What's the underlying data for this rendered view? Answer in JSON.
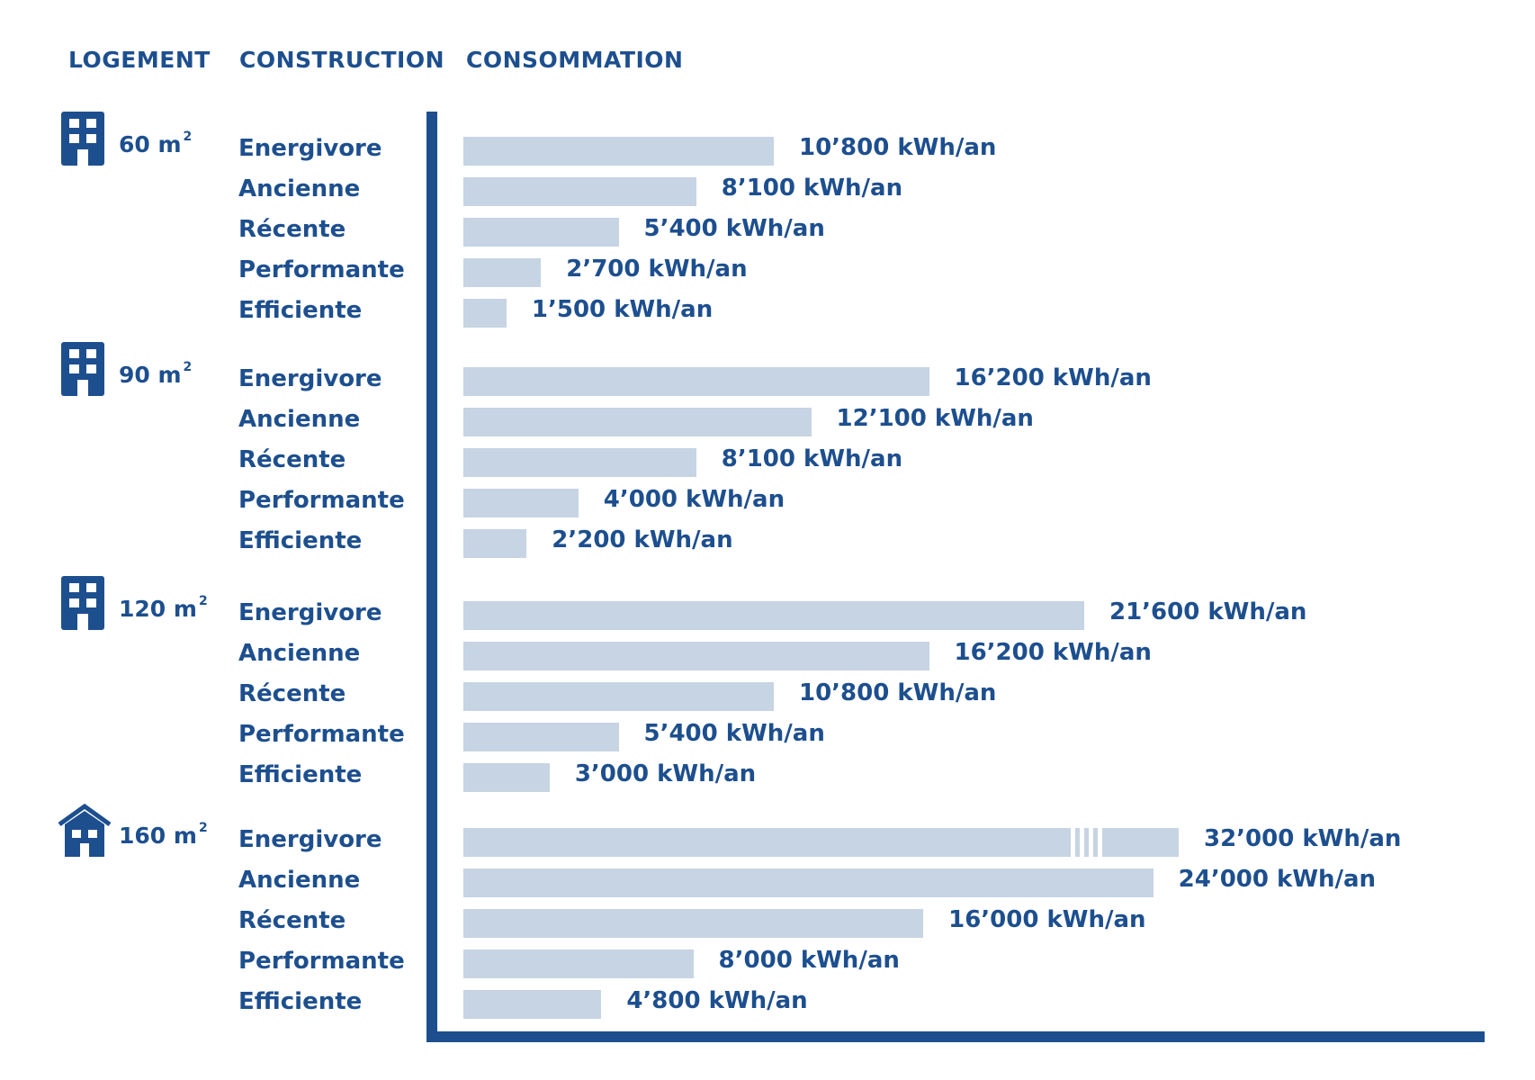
{
  "headers": {
    "logement": "LOGEMENT",
    "construction": "CONSTRUCTION",
    "consommation": "CONSOMMATION"
  },
  "colors": {
    "accent": "#1d4f8f",
    "bar": "#c6d4e3",
    "background": "#ffffff"
  },
  "chart_data": {
    "type": "bar",
    "orientation": "horizontal",
    "unit": "kWh/an",
    "axis_break": {
      "category_group": "160 m2",
      "category": "Energivore"
    },
    "groups": [
      {
        "size": "60 m",
        "exponent": "2",
        "icon": "apartment-building-icon",
        "rows": [
          {
            "label": "Energivore",
            "value": 10800,
            "text": "10’800 kWh/an"
          },
          {
            "label": "Ancienne",
            "value": 8100,
            "text": "8’100 kWh/an"
          },
          {
            "label": "Récente",
            "value": 5400,
            "text": "5’400 kWh/an"
          },
          {
            "label": "Performante",
            "value": 2700,
            "text": "2’700 kWh/an"
          },
          {
            "label": "Efficiente",
            "value": 1500,
            "text": "1’500 kWh/an"
          }
        ]
      },
      {
        "size": "90 m",
        "exponent": "2",
        "icon": "apartment-building-icon",
        "rows": [
          {
            "label": "Energivore",
            "value": 16200,
            "text": "16’200 kWh/an"
          },
          {
            "label": "Ancienne",
            "value": 12100,
            "text": "12’100 kWh/an"
          },
          {
            "label": "Récente",
            "value": 8100,
            "text": "8’100 kWh/an"
          },
          {
            "label": "Performante",
            "value": 4000,
            "text": "4’000 kWh/an"
          },
          {
            "label": "Efficiente",
            "value": 2200,
            "text": "2’200 kWh/an"
          }
        ]
      },
      {
        "size": "120 m",
        "exponent": "2",
        "icon": "apartment-building-icon",
        "rows": [
          {
            "label": "Energivore",
            "value": 21600,
            "text": "21’600 kWh/an"
          },
          {
            "label": "Ancienne",
            "value": 16200,
            "text": "16’200 kWh/an"
          },
          {
            "label": "Récente",
            "value": 10800,
            "text": "10’800 kWh/an"
          },
          {
            "label": "Performante",
            "value": 5400,
            "text": "5’400 kWh/an"
          },
          {
            "label": "Efficiente",
            "value": 3000,
            "text": "3’000 kWh/an"
          }
        ]
      },
      {
        "size": "160 m",
        "exponent": "2",
        "icon": "house-icon",
        "rows": [
          {
            "label": "Energivore",
            "value": 32000,
            "text": "32’000 kWh/an"
          },
          {
            "label": "Ancienne",
            "value": 24000,
            "text": "24’000 kWh/an"
          },
          {
            "label": "Récente",
            "value": 16000,
            "text": "16’000 kWh/an"
          },
          {
            "label": "Performante",
            "value": 8000,
            "text": "8’000 kWh/an"
          },
          {
            "label": "Efficiente",
            "value": 4800,
            "text": "4’800 kWh/an"
          }
        ]
      }
    ]
  }
}
